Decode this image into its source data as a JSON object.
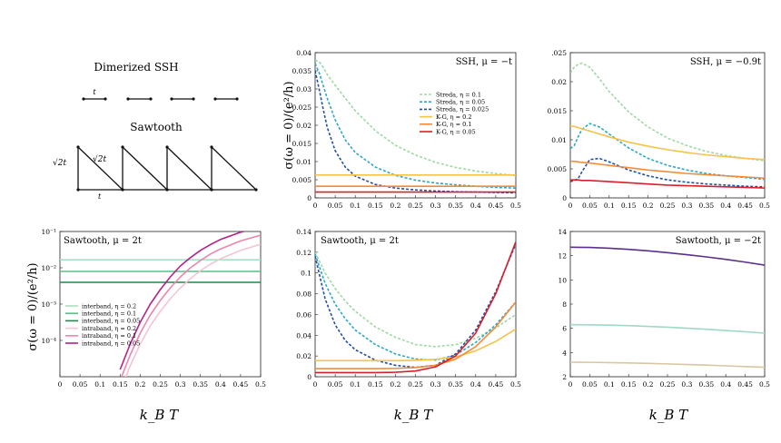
{
  "figure": {
    "lattice": {
      "ssh_title": "Dimerized SSH",
      "sawtooth_title": "Sawtooth",
      "ssh_bond_label": "t",
      "saw_diag_label": "√2t",
      "saw_diag_label2": "√2t",
      "saw_base_label": "t"
    },
    "xlabel_bottom": "k_B T",
    "ylabel_top": "σ(ω = 0)/(e²/h)",
    "ylabel_bottom": "σ(ω = 0)/(e²/h)"
  },
  "chart_data": [
    {
      "id": "ssh_mu_-t",
      "type": "line",
      "title": "SSH, μ = −t",
      "xlim": [
        0,
        0.5
      ],
      "ylim": [
        0,
        0.04
      ],
      "x_ticks": [
        "0",
        "0.05",
        "0.1",
        "0.15",
        "0.2",
        "0.25",
        "0.3",
        "0.35",
        "0.4",
        "0.45",
        "0.5"
      ],
      "y_ticks": [
        "0",
        "0.005",
        "0.01",
        "0.015",
        "0.02",
        "0.025",
        "0.03",
        "0.035",
        "0.04"
      ],
      "y_tick_values": [
        0,
        0.005,
        0.01,
        0.015,
        0.02,
        0.025,
        0.03,
        0.035,
        0.04
      ],
      "legend_position": "upper-right",
      "x": [
        0,
        0.01,
        0.02,
        0.03,
        0.05,
        0.075,
        0.1,
        0.15,
        0.2,
        0.25,
        0.3,
        0.35,
        0.4,
        0.45,
        0.5
      ],
      "series": [
        {
          "name": "Streda, η = 0.1",
          "color": "#9fd8a4",
          "dash": "3,2",
          "values": [
            0.038,
            0.0375,
            0.036,
            0.034,
            0.031,
            0.0275,
            0.024,
            0.0185,
            0.0145,
            0.0118,
            0.0098,
            0.0084,
            0.0074,
            0.0067,
            0.0062
          ]
        },
        {
          "name": "Streda, η = 0.05",
          "color": "#2aa7c7",
          "dash": "3,2",
          "values": [
            0.037,
            0.0345,
            0.031,
            0.0275,
            0.0215,
            0.016,
            0.0125,
            0.0085,
            0.0062,
            0.0049,
            0.0041,
            0.0036,
            0.0032,
            0.0029,
            0.0027
          ]
        },
        {
          "name": "Streda, η = 0.025",
          "color": "#1f4fa3",
          "dash": "3,2",
          "values": [
            0.035,
            0.03,
            0.0245,
            0.0195,
            0.013,
            0.0085,
            0.006,
            0.0037,
            0.0027,
            0.0022,
            0.0019,
            0.0017,
            0.0016,
            0.0015,
            0.0014
          ]
        },
        {
          "name": "K-G, η = 0.2",
          "color": "#f6c34a",
          "dash": "",
          "values": [
            0.0063,
            0.0063,
            0.0063,
            0.0063,
            0.0063,
            0.0063,
            0.0063,
            0.0063,
            0.0063,
            0.0063,
            0.0063,
            0.0063,
            0.0063,
            0.0063,
            0.0063
          ]
        },
        {
          "name": "K-G, η = 0.1",
          "color": "#f28c3a",
          "dash": "",
          "values": [
            0.0032,
            0.0032,
            0.0032,
            0.0032,
            0.0032,
            0.0032,
            0.0032,
            0.0032,
            0.0032,
            0.0032,
            0.0032,
            0.0032,
            0.0032,
            0.0032,
            0.0032
          ]
        },
        {
          "name": "K-G, η = 0.05",
          "color": "#d8202a",
          "dash": "",
          "values": [
            0.0016,
            0.0016,
            0.0016,
            0.0016,
            0.0016,
            0.0016,
            0.0016,
            0.0016,
            0.0016,
            0.0016,
            0.0016,
            0.0016,
            0.0016,
            0.0016,
            0.0016
          ]
        }
      ]
    },
    {
      "id": "ssh_mu_-0.9t",
      "type": "line",
      "title": "SSH, μ = −0.9t",
      "xlim": [
        0,
        0.5
      ],
      "ylim": [
        0,
        0.025
      ],
      "x_ticks": [
        "0",
        "0.05",
        "0.1",
        "0.15",
        "0.2",
        "0.25",
        "0.3",
        "0.35",
        "0.4",
        "0.45",
        "0.5"
      ],
      "y_ticks": [
        "0",
        "0.005",
        "0.01",
        "0.015",
        "0.02",
        ".025"
      ],
      "y_tick_values": [
        0,
        0.005,
        0.01,
        0.015,
        0.02,
        0.025
      ],
      "x": [
        0,
        0.01,
        0.02,
        0.03,
        0.05,
        0.075,
        0.1,
        0.15,
        0.2,
        0.25,
        0.3,
        0.35,
        0.4,
        0.45,
        0.5
      ],
      "series": [
        {
          "color": "#9fd8a4",
          "dash": "3,2",
          "values": [
            0.0215,
            0.0225,
            0.023,
            0.0232,
            0.0225,
            0.0205,
            0.0183,
            0.0148,
            0.0122,
            0.0103,
            0.009,
            0.008,
            0.0073,
            0.0068,
            0.0064
          ]
        },
        {
          "color": "#2aa7c7",
          "dash": "3,2",
          "values": [
            0.0085,
            0.009,
            0.0105,
            0.0118,
            0.0128,
            0.0122,
            0.011,
            0.0086,
            0.0068,
            0.0056,
            0.0048,
            0.0042,
            0.0038,
            0.0035,
            0.0032
          ]
        },
        {
          "color": "#1f4fa3",
          "dash": "3,2",
          "values": [
            0.0028,
            0.003,
            0.0033,
            0.0045,
            0.0066,
            0.0068,
            0.0062,
            0.0048,
            0.0038,
            0.0031,
            0.0027,
            0.0024,
            0.0022,
            0.002,
            0.0019
          ]
        },
        {
          "color": "#f6c34a",
          "dash": "",
          "values": [
            0.0124,
            0.0123,
            0.0121,
            0.0119,
            0.0115,
            0.011,
            0.0105,
            0.0096,
            0.0089,
            0.0083,
            0.0078,
            0.0074,
            0.0071,
            0.0068,
            0.0066
          ]
        },
        {
          "color": "#f28c3a",
          "dash": "",
          "values": [
            0.0063,
            0.0063,
            0.0062,
            0.0061,
            0.006,
            0.0058,
            0.0056,
            0.0052,
            0.0048,
            0.0045,
            0.0042,
            0.004,
            0.0038,
            0.0036,
            0.0034
          ]
        },
        {
          "color": "#d8202a",
          "dash": "",
          "values": [
            0.0031,
            0.0031,
            0.0031,
            0.003,
            0.003,
            0.0029,
            0.0028,
            0.0026,
            0.0024,
            0.0022,
            0.0021,
            0.002,
            0.0019,
            0.0018,
            0.0017
          ]
        }
      ]
    },
    {
      "id": "sawtooth_mu_2t_log",
      "type": "line",
      "title": "Sawtooth, μ = 2t",
      "scale_y": "log",
      "xlim": [
        0,
        0.5
      ],
      "ylim_log10": [
        -5,
        -1
      ],
      "x_ticks": [
        "0",
        "0.05",
        "0.1",
        "0.15",
        "0.2",
        "0.25",
        "0.3",
        "0.35",
        "0.4",
        "0.45",
        "0.5"
      ],
      "y_ticks": [
        "10⁻¹",
        "10⁻²",
        "10⁻³",
        "10⁻⁴"
      ],
      "y_tick_values_log10": [
        -1,
        -2,
        -3,
        -4
      ],
      "legend_position": "lower-left",
      "x": [
        0.15,
        0.175,
        0.2,
        0.225,
        0.25,
        0.275,
        0.3,
        0.325,
        0.35,
        0.375,
        0.4,
        0.45,
        0.5
      ],
      "series": [
        {
          "name": "interband, η = 0.2",
          "color": "#a8e0c0",
          "dash": "",
          "flat_log10": -1.78
        },
        {
          "name": "interband, η = 0.1",
          "color": "#5bbf87",
          "dash": "",
          "flat_log10": -2.1
        },
        {
          "name": "interband, η = 0.05",
          "color": "#1f8a4c",
          "dash": "",
          "flat_log10": -2.4
        },
        {
          "name": "intraband, η = 0.2",
          "color": "#f3c6d2",
          "dash": "",
          "log10_values": [
            -5.4,
            -4.7,
            -4.1,
            -3.6,
            -3.2,
            -2.85,
            -2.55,
            -2.3,
            -2.08,
            -1.9,
            -1.75,
            -1.52,
            -1.35
          ]
        },
        {
          "name": "intraband, η = 0.1",
          "color": "#ec86ad",
          "dash": "",
          "log10_values": [
            -5.1,
            -4.4,
            -3.8,
            -3.3,
            -2.9,
            -2.55,
            -2.25,
            -2.0,
            -1.8,
            -1.62,
            -1.48,
            -1.26,
            -1.1
          ]
        },
        {
          "name": "intraband, η = 0.05",
          "color": "#b3228a",
          "dash": "",
          "log10_values": [
            -4.8,
            -4.1,
            -3.5,
            -3.0,
            -2.6,
            -2.25,
            -1.95,
            -1.72,
            -1.52,
            -1.36,
            -1.22,
            -1.02,
            -0.88
          ]
        }
      ]
    },
    {
      "id": "sawtooth_mu_2t",
      "type": "line",
      "title": "Sawtooth, μ = 2t",
      "xlim": [
        0,
        0.5
      ],
      "ylim": [
        0,
        0.14
      ],
      "x_ticks": [
        "0",
        "0.05",
        "0.1",
        "0.15",
        "0.2",
        "0.25",
        "0.3",
        "0.35",
        "0.4",
        "0.45",
        "0.5"
      ],
      "y_ticks": [
        "0",
        "0.02",
        "0.04",
        "0.06",
        "0.08",
        "0.1",
        "0.12",
        "0.14"
      ],
      "y_tick_values": [
        0,
        0.02,
        0.04,
        0.06,
        0.08,
        0.1,
        0.12,
        0.14
      ],
      "x": [
        0,
        0.025,
        0.05,
        0.075,
        0.1,
        0.15,
        0.2,
        0.25,
        0.3,
        0.35,
        0.4,
        0.45,
        0.5
      ],
      "series": [
        {
          "color": "#9fd8a4",
          "dash": "3,2",
          "values": [
            0.12,
            0.1,
            0.085,
            0.073,
            0.063,
            0.048,
            0.038,
            0.031,
            0.029,
            0.031,
            0.037,
            0.047,
            0.06
          ]
        },
        {
          "color": "#2aa7c7",
          "dash": "3,2",
          "values": [
            0.118,
            0.09,
            0.07,
            0.056,
            0.045,
            0.031,
            0.022,
            0.017,
            0.016,
            0.021,
            0.033,
            0.05,
            0.072
          ]
        },
        {
          "color": "#1f4fa3",
          "dash": "3,2",
          "values": [
            0.116,
            0.075,
            0.05,
            0.035,
            0.026,
            0.016,
            0.011,
            0.009,
            0.011,
            0.022,
            0.045,
            0.082,
            0.128
          ]
        },
        {
          "color": "#f6c34a",
          "dash": "",
          "values": [
            0.0155,
            0.0155,
            0.0155,
            0.0155,
            0.0155,
            0.0155,
            0.0155,
            0.0158,
            0.0168,
            0.019,
            0.025,
            0.034,
            0.046
          ]
        },
        {
          "color": "#f28c3a",
          "dash": "",
          "values": [
            0.0078,
            0.0078,
            0.0078,
            0.0078,
            0.0078,
            0.0078,
            0.008,
            0.0088,
            0.011,
            0.017,
            0.029,
            0.048,
            0.072
          ]
        },
        {
          "color": "#d8202a",
          "dash": "",
          "values": [
            0.004,
            0.004,
            0.004,
            0.004,
            0.004,
            0.004,
            0.0043,
            0.0055,
            0.0095,
            0.02,
            0.042,
            0.08,
            0.13
          ]
        }
      ]
    },
    {
      "id": "sawtooth_mu_-2t",
      "type": "line",
      "title": "Sawtooth, μ = −2t",
      "xlim": [
        0,
        0.5
      ],
      "ylim": [
        2,
        14
      ],
      "x_ticks": [
        "0",
        "0.05",
        "0.1",
        "0.15",
        "0.2",
        "0.25",
        "0.3",
        "0.35",
        "0.4",
        "0.45",
        "0.5"
      ],
      "y_ticks": [
        "2",
        "4",
        "6",
        "8",
        "10",
        "12",
        "14"
      ],
      "y_tick_values": [
        2,
        4,
        6,
        8,
        10,
        12,
        14
      ],
      "x": [
        0,
        0.05,
        0.1,
        0.15,
        0.2,
        0.25,
        0.3,
        0.35,
        0.4,
        0.45,
        0.5
      ],
      "series": [
        {
          "color": "#d8c7a0",
          "dash": "",
          "values": [
            3.2,
            3.19,
            3.17,
            3.14,
            3.1,
            3.06,
            3.01,
            2.96,
            2.9,
            2.84,
            2.78
          ]
        },
        {
          "color": "#9fd8c4",
          "dash": "",
          "values": [
            6.3,
            6.29,
            6.26,
            6.22,
            6.16,
            6.09,
            6.01,
            5.92,
            5.82,
            5.72,
            5.6
          ]
        },
        {
          "color": "#5b2f8c",
          "dash": "",
          "values": [
            12.7,
            12.68,
            12.62,
            12.52,
            12.4,
            12.25,
            12.08,
            11.9,
            11.7,
            11.47,
            11.22
          ]
        }
      ]
    }
  ]
}
